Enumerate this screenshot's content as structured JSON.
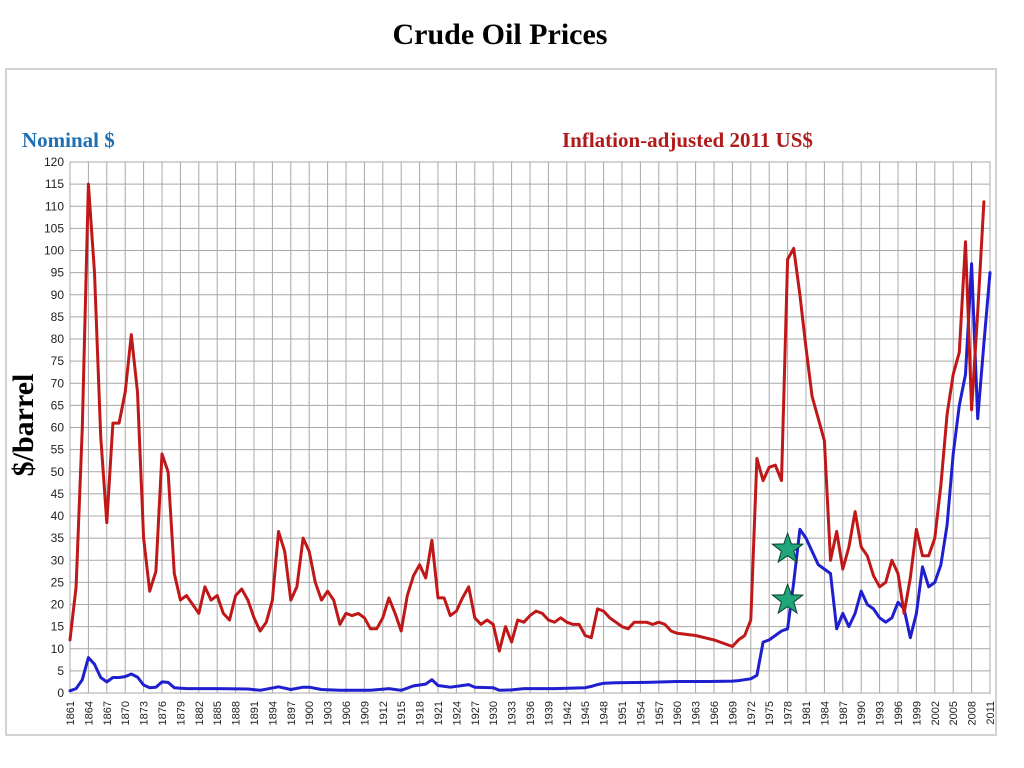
{
  "chart_data": {
    "type": "line",
    "title": "Crude Oil Prices",
    "ylabel": "$/barrel",
    "xlabel": "",
    "xlim": [
      1861,
      2011
    ],
    "ylim": [
      0,
      120
    ],
    "grid": true,
    "ytick_labels": [
      "0",
      "5",
      "10",
      "15",
      "20",
      "25",
      "30",
      "35",
      "40",
      "45",
      "50",
      "55",
      "60",
      "65",
      "70",
      "75",
      "80",
      "85",
      "90",
      "95",
      "100",
      "105",
      "110",
      "115",
      "120"
    ],
    "xtick_labels": [
      "1861",
      "1864",
      "1867",
      "1870",
      "1873",
      "1876",
      "1879",
      "1882",
      "1885",
      "1888",
      "1891",
      "1894",
      "1897",
      "1900",
      "1903",
      "1906",
      "1909",
      "1912",
      "1915",
      "1918",
      "1921",
      "1924",
      "1927",
      "1930",
      "1933",
      "1936",
      "1939",
      "1942",
      "1945",
      "1948",
      "1951",
      "1954",
      "1957",
      "1960",
      "1963",
      "1966",
      "1969",
      "1972",
      "1975",
      "1978",
      "1981",
      "1984",
      "1987",
      "1990",
      "1993",
      "1996",
      "1999",
      "2002",
      "2005",
      "2008",
      "2011"
    ],
    "series": [
      {
        "name": "Nominal $",
        "color": "#1f1fcf",
        "legend_color": "#1f6fb4",
        "points": [
          [
            1861,
            0.5
          ],
          [
            1862,
            1
          ],
          [
            1863,
            3
          ],
          [
            1864,
            8
          ],
          [
            1865,
            6.5
          ],
          [
            1866,
            3.5
          ],
          [
            1867,
            2.5
          ],
          [
            1868,
            3.5
          ],
          [
            1869,
            3.5
          ],
          [
            1870,
            3.7
          ],
          [
            1871,
            4.3
          ],
          [
            1872,
            3.6
          ],
          [
            1873,
            1.8
          ],
          [
            1874,
            1.2
          ],
          [
            1875,
            1.3
          ],
          [
            1876,
            2.5
          ],
          [
            1877,
            2.4
          ],
          [
            1878,
            1.2
          ],
          [
            1880,
            1
          ],
          [
            1885,
            1
          ],
          [
            1890,
            0.9
          ],
          [
            1892,
            0.6
          ],
          [
            1895,
            1.4
          ],
          [
            1897,
            0.8
          ],
          [
            1899,
            1.3
          ],
          [
            1900,
            1.3
          ],
          [
            1902,
            0.8
          ],
          [
            1905,
            0.6
          ],
          [
            1910,
            0.6
          ],
          [
            1913,
            1
          ],
          [
            1915,
            0.6
          ],
          [
            1917,
            1.6
          ],
          [
            1919,
            2
          ],
          [
            1920,
            3
          ],
          [
            1921,
            1.7
          ],
          [
            1923,
            1.3
          ],
          [
            1925,
            1.7
          ],
          [
            1926,
            1.9
          ],
          [
            1927,
            1.3
          ],
          [
            1930,
            1.2
          ],
          [
            1931,
            0.6
          ],
          [
            1933,
            0.7
          ],
          [
            1935,
            1
          ],
          [
            1940,
            1
          ],
          [
            1945,
            1.2
          ],
          [
            1946,
            1.5
          ],
          [
            1947,
            1.9
          ],
          [
            1948,
            2.2
          ],
          [
            1950,
            2.3
          ],
          [
            1955,
            2.4
          ],
          [
            1960,
            2.6
          ],
          [
            1965,
            2.6
          ],
          [
            1969,
            2.7
          ],
          [
            1970,
            2.8
          ],
          [
            1971,
            3
          ],
          [
            1972,
            3.2
          ],
          [
            1973,
            4
          ],
          [
            1974,
            11.5
          ],
          [
            1975,
            12
          ],
          [
            1976,
            13
          ],
          [
            1977,
            14
          ],
          [
            1978,
            14.5
          ],
          [
            1979,
            25
          ],
          [
            1980,
            37
          ],
          [
            1981,
            35
          ],
          [
            1982,
            32
          ],
          [
            1983,
            29
          ],
          [
            1984,
            28
          ],
          [
            1985,
            27
          ],
          [
            1986,
            14.5
          ],
          [
            1987,
            18
          ],
          [
            1988,
            15
          ],
          [
            1989,
            18
          ],
          [
            1990,
            23
          ],
          [
            1991,
            20
          ],
          [
            1992,
            19
          ],
          [
            1993,
            17
          ],
          [
            1994,
            16
          ],
          [
            1995,
            17
          ],
          [
            1996,
            20.5
          ],
          [
            1997,
            19
          ],
          [
            1998,
            12.5
          ],
          [
            1999,
            18
          ],
          [
            2000,
            28.5
          ],
          [
            2001,
            24
          ],
          [
            2002,
            25
          ],
          [
            2003,
            29
          ],
          [
            2004,
            38
          ],
          [
            2005,
            54
          ],
          [
            2006,
            65
          ],
          [
            2007,
            72
          ],
          [
            2008,
            97
          ],
          [
            2009,
            62
          ],
          [
            2010,
            79
          ],
          [
            2011,
            95
          ]
        ]
      },
      {
        "name": "Inflation-adjusted 2011 US$",
        "color": "#c01818",
        "legend_color": "#b01c1c",
        "points": [
          [
            1861,
            12
          ],
          [
            1862,
            24
          ],
          [
            1863,
            60
          ],
          [
            1864,
            115
          ],
          [
            1865,
            95
          ],
          [
            1866,
            58
          ],
          [
            1867,
            38.5
          ],
          [
            1868,
            61
          ],
          [
            1869,
            61
          ],
          [
            1870,
            68
          ],
          [
            1871,
            81
          ],
          [
            1872,
            68
          ],
          [
            1873,
            35
          ],
          [
            1874,
            23
          ],
          [
            1875,
            27.5
          ],
          [
            1876,
            54
          ],
          [
            1877,
            50
          ],
          [
            1878,
            27
          ],
          [
            1879,
            21
          ],
          [
            1880,
            22
          ],
          [
            1881,
            20
          ],
          [
            1882,
            18
          ],
          [
            1883,
            24
          ],
          [
            1884,
            21
          ],
          [
            1885,
            22
          ],
          [
            1886,
            18
          ],
          [
            1887,
            16.5
          ],
          [
            1888,
            22
          ],
          [
            1889,
            23.5
          ],
          [
            1890,
            21
          ],
          [
            1891,
            17
          ],
          [
            1892,
            14
          ],
          [
            1893,
            16
          ],
          [
            1894,
            21
          ],
          [
            1895,
            36.5
          ],
          [
            1896,
            32
          ],
          [
            1897,
            21
          ],
          [
            1898,
            24
          ],
          [
            1899,
            35
          ],
          [
            1900,
            32
          ],
          [
            1901,
            25
          ],
          [
            1902,
            21
          ],
          [
            1903,
            23
          ],
          [
            1904,
            21
          ],
          [
            1905,
            15.5
          ],
          [
            1906,
            18
          ],
          [
            1907,
            17.5
          ],
          [
            1908,
            18
          ],
          [
            1909,
            17
          ],
          [
            1910,
            14.5
          ],
          [
            1911,
            14.5
          ],
          [
            1912,
            17
          ],
          [
            1913,
            21.5
          ],
          [
            1914,
            18
          ],
          [
            1915,
            14
          ],
          [
            1916,
            22
          ],
          [
            1917,
            26.5
          ],
          [
            1918,
            29
          ],
          [
            1919,
            26
          ],
          [
            1920,
            34.5
          ],
          [
            1921,
            21.5
          ],
          [
            1922,
            21.5
          ],
          [
            1923,
            17.5
          ],
          [
            1924,
            18.5
          ],
          [
            1925,
            21.5
          ],
          [
            1926,
            24
          ],
          [
            1927,
            17
          ],
          [
            1928,
            15.5
          ],
          [
            1929,
            16.5
          ],
          [
            1930,
            15.5
          ],
          [
            1931,
            9.5
          ],
          [
            1932,
            15
          ],
          [
            1933,
            11.5
          ],
          [
            1934,
            16.5
          ],
          [
            1935,
            16
          ],
          [
            1936,
            17.5
          ],
          [
            1937,
            18.5
          ],
          [
            1938,
            18
          ],
          [
            1939,
            16.5
          ],
          [
            1940,
            16
          ],
          [
            1941,
            17
          ],
          [
            1942,
            16
          ],
          [
            1943,
            15.5
          ],
          [
            1944,
            15.5
          ],
          [
            1945,
            13
          ],
          [
            1946,
            12.5
          ],
          [
            1947,
            19
          ],
          [
            1948,
            18.5
          ],
          [
            1949,
            17
          ],
          [
            1950,
            16
          ],
          [
            1951,
            15
          ],
          [
            1952,
            14.5
          ],
          [
            1953,
            16
          ],
          [
            1955,
            16
          ],
          [
            1956,
            15.5
          ],
          [
            1957,
            16
          ],
          [
            1958,
            15.5
          ],
          [
            1959,
            14
          ],
          [
            1960,
            13.5
          ],
          [
            1963,
            13
          ],
          [
            1966,
            12
          ],
          [
            1969,
            10.5
          ],
          [
            1970,
            12
          ],
          [
            1971,
            13
          ],
          [
            1972,
            16.5
          ],
          [
            1973,
            53
          ],
          [
            1974,
            48
          ],
          [
            1975,
            51
          ],
          [
            1976,
            51.5
          ],
          [
            1977,
            48
          ],
          [
            1978,
            98
          ],
          [
            1979,
            100.5
          ],
          [
            1980,
            90
          ],
          [
            1981,
            78
          ],
          [
            1982,
            67
          ],
          [
            1983,
            62
          ],
          [
            1984,
            57
          ],
          [
            1985,
            30
          ],
          [
            1986,
            36.5
          ],
          [
            1987,
            28
          ],
          [
            1988,
            33
          ],
          [
            1989,
            41
          ],
          [
            1990,
            33
          ],
          [
            1991,
            31
          ],
          [
            1992,
            26.5
          ],
          [
            1993,
            24
          ],
          [
            1994,
            25
          ],
          [
            1995,
            30
          ],
          [
            1996,
            27
          ],
          [
            1997,
            18
          ],
          [
            1998,
            26
          ],
          [
            1999,
            37
          ],
          [
            2000,
            31
          ],
          [
            2001,
            31
          ],
          [
            2002,
            35
          ],
          [
            2003,
            47
          ],
          [
            2004,
            63
          ],
          [
            2005,
            72
          ],
          [
            2006,
            77
          ],
          [
            2007,
            102
          ],
          [
            2008,
            64
          ],
          [
            2009,
            86
          ],
          [
            2010,
            111
          ]
        ]
      }
    ],
    "markers": [
      {
        "shape": "star",
        "color": "#1fa67a",
        "x": 1978,
        "y": 21
      },
      {
        "shape": "star",
        "color": "#1fa67a",
        "x": 1978,
        "y": 32.5
      }
    ]
  }
}
